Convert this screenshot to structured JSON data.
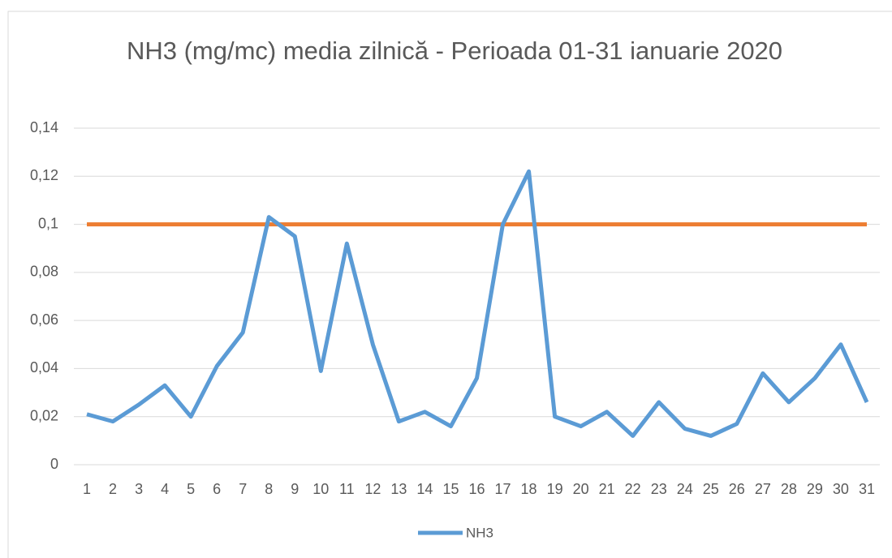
{
  "chart_data": {
    "type": "line",
    "title": "NH3 (mg/mc) media zilnică - Perioada 01-31 ianuarie 2020",
    "categories": [
      "1",
      "2",
      "3",
      "4",
      "5",
      "6",
      "7",
      "8",
      "9",
      "10",
      "11",
      "12",
      "13",
      "14",
      "15",
      "16",
      "17",
      "18",
      "19",
      "20",
      "21",
      "22",
      "23",
      "24",
      "25",
      "26",
      "27",
      "28",
      "29",
      "30",
      "31"
    ],
    "series": [
      {
        "name": "NH3",
        "color": "#5b9bd5",
        "values": [
          0.021,
          0.018,
          0.025,
          0.033,
          0.02,
          0.041,
          0.055,
          0.103,
          0.095,
          0.039,
          0.092,
          0.05,
          0.018,
          0.022,
          0.016,
          0.036,
          0.1,
          0.122,
          0.02,
          0.016,
          0.022,
          0.012,
          0.026,
          0.015,
          0.012,
          0.017,
          0.038,
          0.026,
          0.036,
          0.05,
          0.026
        ]
      },
      {
        "color": "#ed7d31",
        "values": [
          0.1,
          0.1,
          0.1,
          0.1,
          0.1,
          0.1,
          0.1,
          0.1,
          0.1,
          0.1,
          0.1,
          0.1,
          0.1,
          0.1,
          0.1,
          0.1,
          0.1,
          0.1,
          0.1,
          0.1,
          0.1,
          0.1,
          0.1,
          0.1,
          0.1,
          0.1,
          0.1,
          0.1,
          0.1,
          0.1,
          0.1
        ]
      }
    ],
    "ylim": [
      0,
      0.14
    ],
    "yticks": [
      0,
      {
        "value": 0.02,
        "label": "0,02"
      },
      {
        "value": 0.04,
        "label": "0,04"
      },
      {
        "value": 0.06,
        "label": "0,06"
      },
      {
        "value": 0.08,
        "label": "0,08"
      },
      {
        "value": 0.1,
        "label": "0,1"
      },
      {
        "value": 0.12,
        "label": "0,12"
      },
      {
        "value": 0.14,
        "label": "0,14"
      }
    ],
    "grid": true,
    "legend": "bottom"
  }
}
